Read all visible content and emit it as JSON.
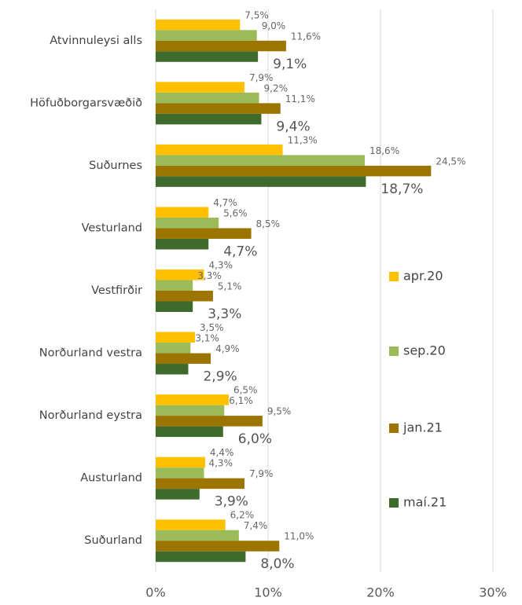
{
  "chart_data": {
    "type": "barh",
    "categories": [
      "Atvinnuleysi alls",
      "Höfuðborgarsvæðið",
      "Suðurnes",
      "Vesturland",
      "Vestfirðir",
      "Norðurland vestra",
      "Norðurland eystra",
      "Austurland",
      "Suðurland"
    ],
    "series": [
      {
        "name": "apr.20",
        "color": "#ffc000",
        "values": [
          7.5,
          7.9,
          11.3,
          4.7,
          4.3,
          3.5,
          6.5,
          4.4,
          6.2
        ],
        "value_labels": [
          "7,5%",
          "7,9%",
          "11,3%",
          "4,7%",
          "4,3%",
          "3,5%",
          "6,5%",
          "4,4%",
          "6,2%"
        ]
      },
      {
        "name": "sep.20",
        "color": "#9bbb59",
        "values": [
          9.0,
          9.2,
          18.6,
          5.6,
          3.3,
          3.1,
          6.1,
          4.3,
          7.4
        ],
        "value_labels": [
          "9,0%",
          "9,2%",
          "18,6%",
          "5,6%",
          "3,3%",
          "3,1%",
          "6,1%",
          "4,3%",
          "7,4%"
        ]
      },
      {
        "name": "jan.21",
        "color": "#9c7400",
        "values": [
          11.6,
          11.1,
          24.5,
          8.5,
          5.1,
          4.9,
          9.5,
          7.9,
          11.0
        ],
        "value_labels": [
          "11,6%",
          "11,1%",
          "24,5%",
          "8,5%",
          "5,1%",
          "4,9%",
          "9,5%",
          "7,9%",
          "11,0%"
        ]
      },
      {
        "name": "maí.21",
        "color": "#3e6b2c",
        "values": [
          9.1,
          9.4,
          18.7,
          4.7,
          3.3,
          2.9,
          6.0,
          3.9,
          8.0
        ],
        "value_labels": [
          "9,1%",
          "9,4%",
          "18,7%",
          "4,7%",
          "3,3%",
          "2,9%",
          "6,0%",
          "3,9%",
          "8,0%"
        ]
      }
    ],
    "xlim": [
      0,
      30
    ],
    "xticks": [
      {
        "value": 0,
        "label": "0%"
      },
      {
        "value": 10,
        "label": "10%"
      },
      {
        "value": 20,
        "label": "20%"
      },
      {
        "value": 30,
        "label": "30%"
      }
    ],
    "grid": true,
    "legend": "right"
  }
}
